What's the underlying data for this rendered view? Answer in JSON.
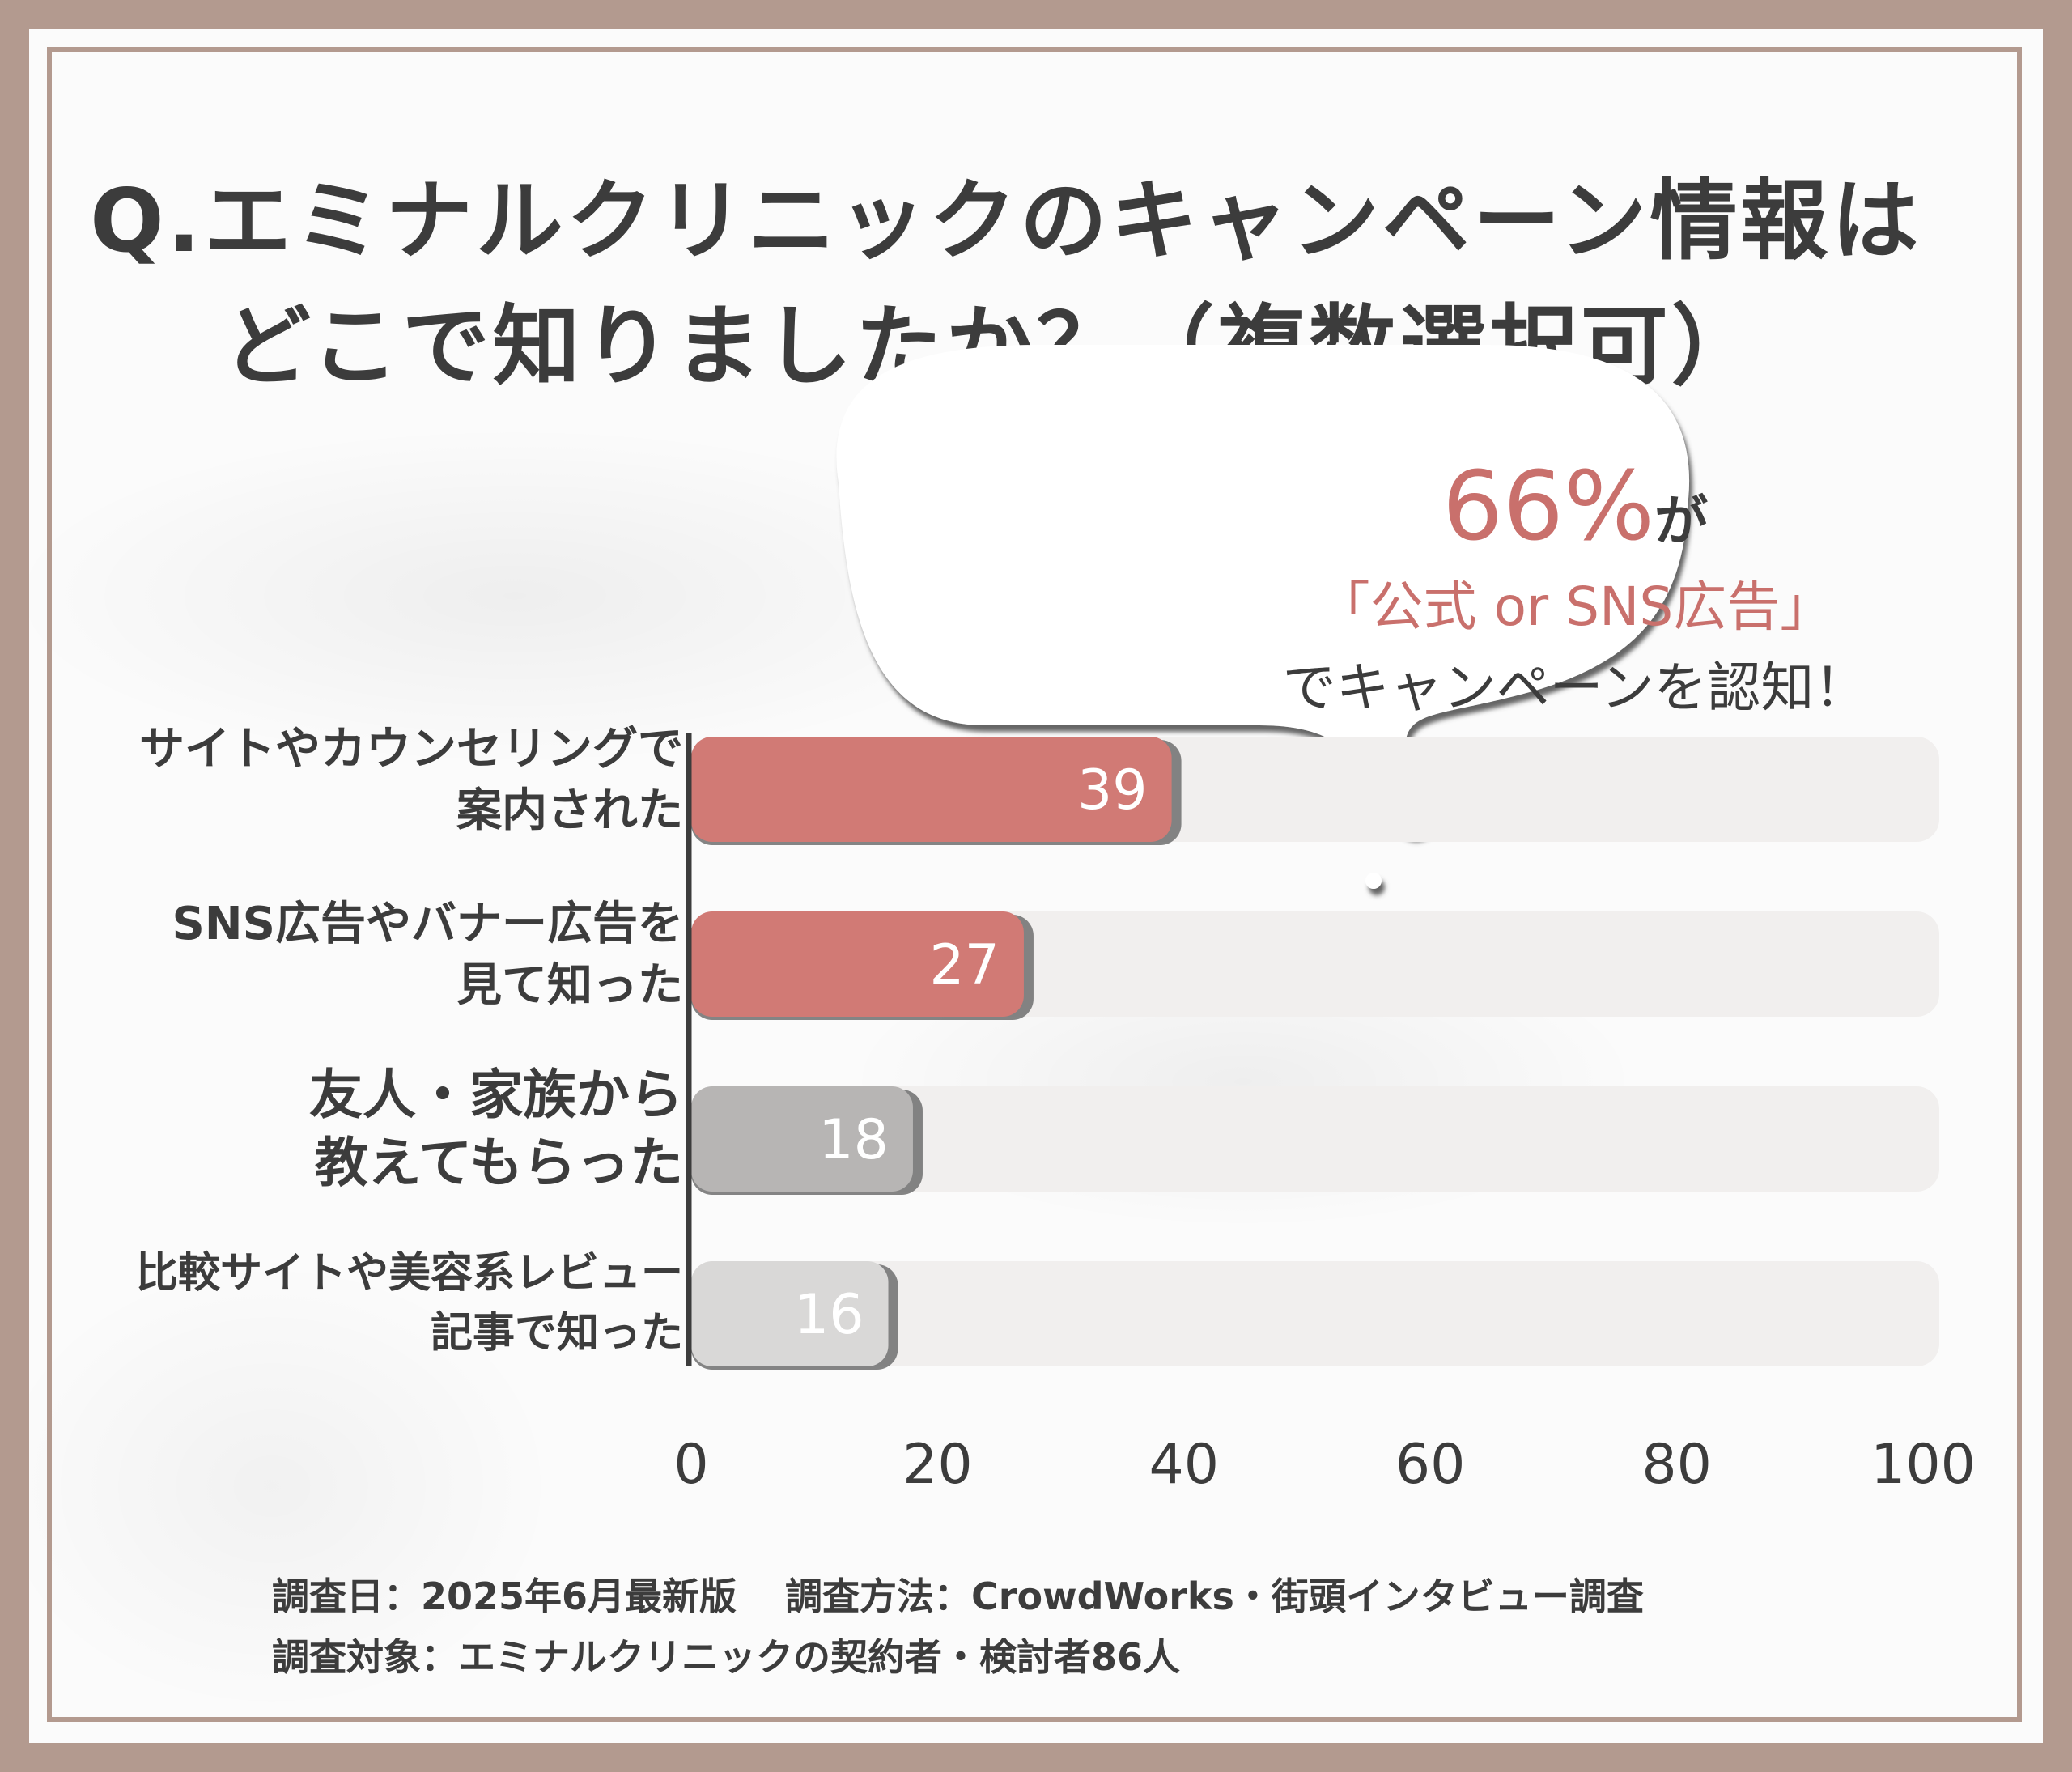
{
  "title_line1": "Q.エミナルクリニックのキャンペーン情報は",
  "title_line2": "どこで知りましたか？（複数選択可）",
  "bubble": {
    "percent": "66%",
    "suffix": "が",
    "line2": "「公式 or SNS広告」",
    "line3": "でキャンペーンを認知！"
  },
  "footer": {
    "date": "調査日：2025年6月最新版",
    "method": "調査方法：CrowdWorks・街頭インタビュー調査",
    "target": "調査対象：エミナルクリニックの契約者・検討者86人"
  },
  "colors": {
    "highlight": "#d17a75",
    "muted": "#b7b5b4",
    "muted_light": "#d9d8d7",
    "track": "#f1efee",
    "text": "#3c3c3c"
  },
  "chart_data": {
    "type": "bar",
    "orientation": "horizontal",
    "categories": [
      [
        "サイトやカウンセリングで",
        "案内された"
      ],
      [
        "SNS広告やバナー広告を",
        "見て知った"
      ],
      [
        "友人・家族から",
        "教えてもらった"
      ],
      [
        "比較サイトや美容系レビュー",
        "記事で知った"
      ]
    ],
    "values": [
      39,
      27,
      18,
      16
    ],
    "value_labels": [
      "39",
      "27",
      "18",
      "16"
    ],
    "xlim": [
      0,
      100
    ],
    "xticks": [
      "0",
      "20",
      "40",
      "60",
      "80",
      "100"
    ],
    "highlighted": [
      true,
      true,
      false,
      false
    ]
  }
}
